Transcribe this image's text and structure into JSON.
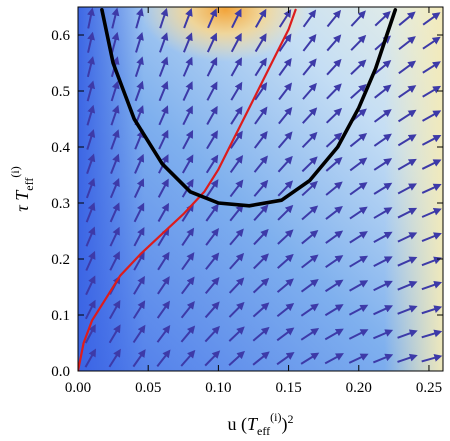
{
  "chart_data": {
    "type": "stream-plot",
    "xlabel": "u (T_eff^(i))^2",
    "ylabel": "τ T_eff^(i)",
    "xlim": [
      0,
      0.26
    ],
    "ylim": [
      0,
      0.65
    ],
    "x_ticks": [
      "0.00",
      "0.05",
      "0.10",
      "0.15",
      "0.20",
      "0.25"
    ],
    "y_ticks": [
      "0.0",
      "0.1",
      "0.2",
      "0.3",
      "0.4",
      "0.5",
      "0.6"
    ],
    "x_tick_values": [
      0,
      0.05,
      0.1,
      0.15,
      0.2,
      0.25
    ],
    "y_tick_values": [
      0,
      0.1,
      0.2,
      0.3,
      0.4,
      0.5,
      0.6
    ],
    "series": [
      {
        "color": "#dd1c1c",
        "x": [
          0.0,
          0.004,
          0.01,
          0.02,
          0.03,
          0.045,
          0.06,
          0.075,
          0.09,
          0.1,
          0.11,
          0.12,
          0.13,
          0.14,
          0.15,
          0.155
        ],
        "y": [
          0.0,
          0.05,
          0.09,
          0.13,
          0.17,
          0.21,
          0.245,
          0.28,
          0.32,
          0.36,
          0.41,
          0.46,
          0.51,
          0.56,
          0.61,
          0.645
        ]
      },
      {
        "color": "#000000",
        "x": [
          0.017,
          0.025,
          0.04,
          0.06,
          0.08,
          0.1,
          0.122,
          0.145,
          0.165,
          0.185,
          0.2,
          0.212,
          0.22,
          0.226
        ],
        "y": [
          0.645,
          0.55,
          0.45,
          0.37,
          0.32,
          0.3,
          0.295,
          0.305,
          0.34,
          0.4,
          0.47,
          0.54,
          0.6,
          0.645
        ]
      }
    ],
    "colors": {
      "deep_blue": "#3f6fe8",
      "light_blue": "#cfe4f6",
      "cream": "#f2e6b0",
      "orange": "#f2a43a",
      "arrow": "#3d3aa8"
    }
  }
}
